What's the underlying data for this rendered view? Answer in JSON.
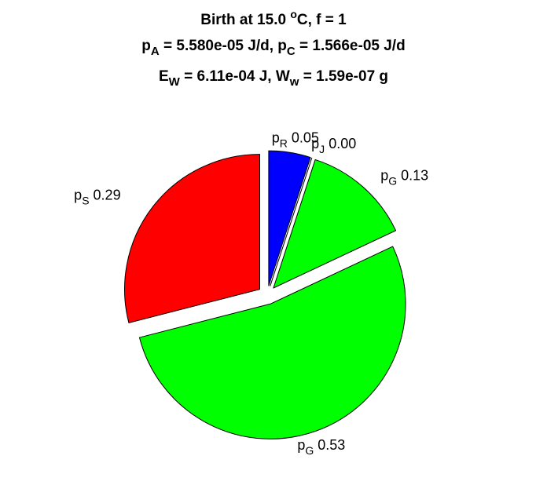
{
  "title_lines": [
    [
      {
        "t": "Birth at 15.0 "
      },
      {
        "t": "o",
        "sup": true
      },
      {
        "t": "C, f = 1"
      }
    ],
    [
      {
        "t": "p"
      },
      {
        "t": "A",
        "sub": true
      },
      {
        "t": " = 5.580e-05 J/d, p"
      },
      {
        "t": "C",
        "sub": true
      },
      {
        "t": " = 1.566e-05 J/d"
      }
    ],
    [
      {
        "t": "E"
      },
      {
        "t": "W",
        "sub": true
      },
      {
        "t": " = 6.11e-04 J, W"
      },
      {
        "t": "w",
        "sub": true
      },
      {
        "t": " = 1.59e-07 g"
      }
    ]
  ],
  "chart_data": {
    "type": "pie",
    "direction": "clockwise",
    "start_angle_deg": 0,
    "exploded": true,
    "slices": [
      {
        "label": "p",
        "sub": "R",
        "value": 0.05,
        "value_text": "0.05",
        "color": "#0000ff"
      },
      {
        "label": "p",
        "sub": "J",
        "value": 0.0,
        "value_text": "0.00",
        "color": "#ffffff"
      },
      {
        "label": "p",
        "sub": "G",
        "value": 0.13,
        "value_text": "0.13",
        "color": "#00ff00"
      },
      {
        "label": "p",
        "sub": "G",
        "value": 0.53,
        "value_text": "0.53",
        "color": "#00ff00"
      },
      {
        "label": "p",
        "sub": "S",
        "value": 0.29,
        "value_text": "0.29",
        "color": "#ff0000"
      }
    ]
  }
}
